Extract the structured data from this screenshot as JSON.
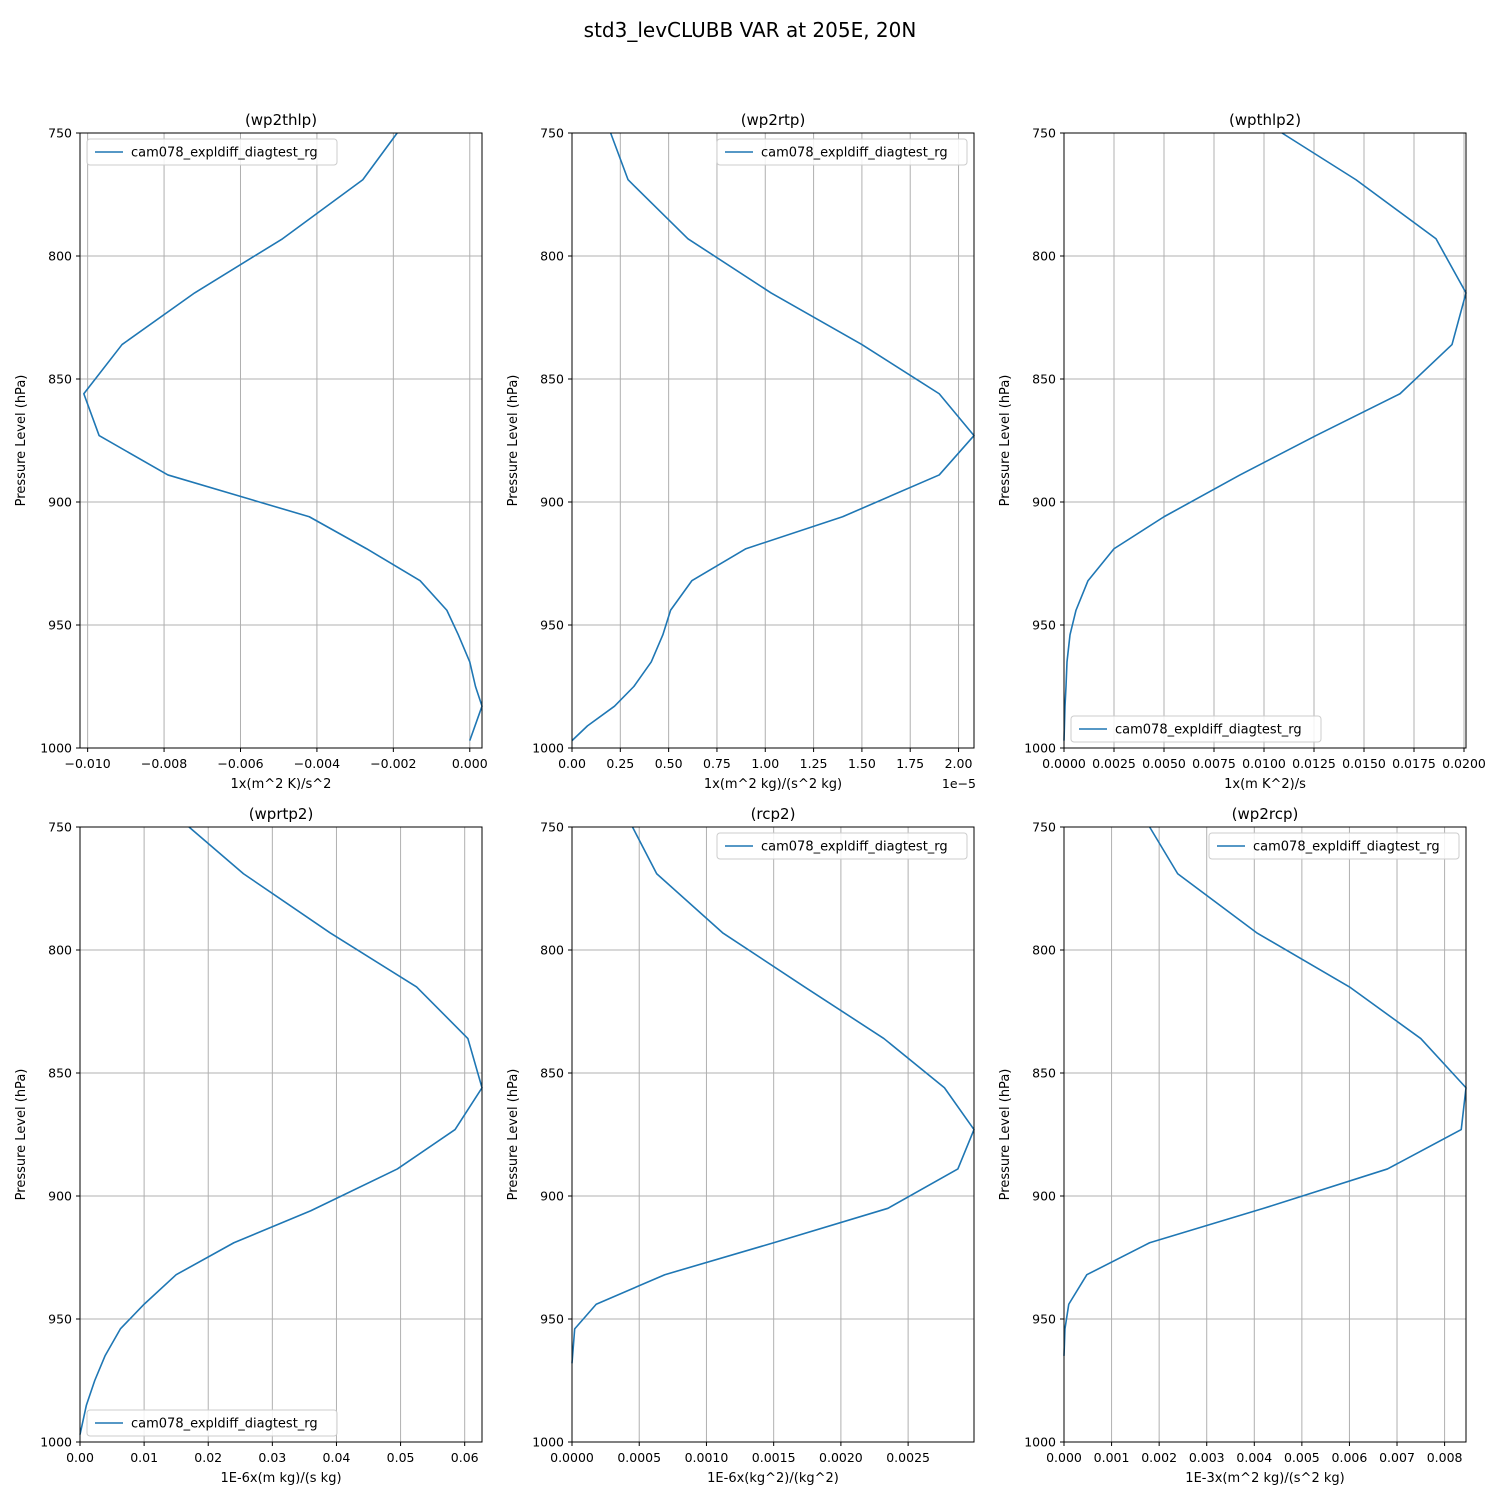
{
  "figure": {
    "title": "std3_levCLUBB VAR at 205E, 20N"
  },
  "style": {
    "line_color": "#1f77b4",
    "grid_color": "#b0b0b0",
    "legend_border": "#cccccc"
  },
  "chart_data": [
    {
      "type": "line",
      "title": "(wp2thlp)",
      "xlabel": "1x(m^2 K)/s^2",
      "ylabel": "Pressure Level (hPa)",
      "xlim": [
        -0.0102,
        0.00032
      ],
      "ylim": [
        1000,
        750
      ],
      "x_scale_note": "",
      "xticks": [
        -0.01,
        -0.008,
        -0.006,
        -0.004,
        -0.002,
        0.0
      ],
      "xtick_labels": [
        "−0.010",
        "−0.008",
        "−0.006",
        "−0.004",
        "−0.002",
        "0.000"
      ],
      "yticks": [
        750,
        800,
        850,
        900,
        950,
        1000
      ],
      "ytick_labels": [
        "750",
        "800",
        "850",
        "900",
        "950",
        "1000"
      ],
      "legend_loc": "upper-left",
      "grid": true,
      "series": [
        {
          "name": "cam078_expldiff_diagtest_rg",
          "x": [
            -0.0019,
            -0.0028,
            -0.0049,
            -0.0072,
            -0.0091,
            -0.0101,
            -0.0097,
            -0.0079,
            -0.0042,
            -0.0027,
            -0.0013,
            -0.0006,
            -0.0003,
            0.0,
            0.00015,
            0.00032,
            0.0
          ],
          "y": [
            750,
            769,
            793,
            815,
            836,
            856,
            873,
            889,
            906,
            919,
            932,
            944,
            954,
            965,
            975,
            983,
            997
          ]
        }
      ]
    },
    {
      "type": "line",
      "title": "(wp2rtp)",
      "xlabel": "1x(m^2 kg)/(s^2 kg)",
      "ylabel": "Pressure Level (hPa)",
      "xlim": [
        0,
        2.08
      ],
      "ylim": [
        1000,
        750
      ],
      "x_scale_note": "1e−5",
      "xticks": [
        0,
        0.25,
        0.5,
        0.75,
        1.0,
        1.25,
        1.5,
        1.75,
        2.0
      ],
      "xtick_labels": [
        "0.00",
        "0.25",
        "0.50",
        "0.75",
        "1.00",
        "1.25",
        "1.50",
        "1.75",
        "2.00"
      ],
      "yticks": [
        750,
        800,
        850,
        900,
        950,
        1000
      ],
      "ytick_labels": [
        "750",
        "800",
        "850",
        "900",
        "950",
        "1000"
      ],
      "legend_loc": "upper-right",
      "grid": true,
      "series": [
        {
          "name": "cam078_expldiff_diagtest_rg",
          "x": [
            0.2,
            0.29,
            0.6,
            1.03,
            1.5,
            1.9,
            2.08,
            1.9,
            1.4,
            0.9,
            0.62,
            0.51,
            0.47,
            0.41,
            0.32,
            0.22,
            0.08,
            0.0
          ],
          "y": [
            750,
            769,
            793,
            815,
            836,
            856,
            873,
            889,
            906,
            919,
            932,
            944,
            954,
            965,
            975,
            983,
            991,
            997
          ]
        }
      ]
    },
    {
      "type": "line",
      "title": "(wpthlp2)",
      "xlabel": "1x(m K^2)/s",
      "ylabel": "Pressure Level (hPa)",
      "xlim": [
        0,
        0.0201
      ],
      "ylim": [
        1000,
        750
      ],
      "x_scale_note": "",
      "xticks": [
        0,
        0.0025,
        0.005,
        0.0075,
        0.01,
        0.0125,
        0.015,
        0.0175,
        0.02
      ],
      "xtick_labels": [
        "0.0000",
        "0.0025",
        "0.0050",
        "0.0075",
        "0.0100",
        "0.0125",
        "0.0150",
        "0.0175",
        "0.0200"
      ],
      "yticks": [
        750,
        800,
        850,
        900,
        950,
        1000
      ],
      "ytick_labels": [
        "750",
        "800",
        "850",
        "900",
        "950",
        "1000"
      ],
      "legend_loc": "lower-left",
      "grid": true,
      "series": [
        {
          "name": "cam078_expldiff_diagtest_rg",
          "x": [
            0.0109,
            0.0146,
            0.0186,
            0.0201,
            0.0194,
            0.0168,
            0.0126,
            0.0088,
            0.005,
            0.0025,
            0.0012,
            0.0006,
            0.0003,
            0.00015,
            0.0001,
            5e-05,
            0.0
          ],
          "y": [
            750,
            769,
            793,
            815,
            836,
            856,
            873,
            889,
            906,
            919,
            932,
            944,
            954,
            965,
            975,
            983,
            997
          ]
        }
      ]
    },
    {
      "type": "line",
      "title": "(wprtp2)",
      "xlabel": "1E-6x(m kg)/(s kg)",
      "ylabel": "Pressure Level (hPa)",
      "xlim": [
        0,
        0.0627
      ],
      "ylim": [
        1000,
        750
      ],
      "x_scale_note": "",
      "xticks": [
        0,
        0.01,
        0.02,
        0.03,
        0.04,
        0.05,
        0.06
      ],
      "xtick_labels": [
        "0.00",
        "0.01",
        "0.02",
        "0.03",
        "0.04",
        "0.05",
        "0.06"
      ],
      "yticks": [
        750,
        800,
        850,
        900,
        950,
        1000
      ],
      "ytick_labels": [
        "750",
        "800",
        "850",
        "900",
        "950",
        "1000"
      ],
      "legend_loc": "lower-left",
      "grid": true,
      "series": [
        {
          "name": "cam078_expldiff_diagtest_rg",
          "x": [
            0.017,
            0.0255,
            0.039,
            0.0525,
            0.0605,
            0.0627,
            0.0585,
            0.0495,
            0.036,
            0.024,
            0.015,
            0.01,
            0.0063,
            0.0039,
            0.0023,
            0.001,
            0.0
          ],
          "y": [
            750,
            769,
            793,
            815,
            836,
            856,
            873,
            889,
            906,
            919,
            932,
            944,
            954,
            965,
            975,
            985,
            997
          ]
        }
      ]
    },
    {
      "type": "line",
      "title": "(rcp2)",
      "xlabel": "1E-6x(kg^2)/(kg^2)",
      "ylabel": "Pressure Level (hPa)",
      "xlim": [
        0,
        0.00299
      ],
      "ylim": [
        1000,
        750
      ],
      "x_scale_note": "",
      "xticks": [
        0,
        0.0005,
        0.001,
        0.0015,
        0.002,
        0.0025
      ],
      "xtick_labels": [
        "0.0000",
        "0.0005",
        "0.0010",
        "0.0015",
        "0.0020",
        "0.0025"
      ],
      "yticks": [
        750,
        800,
        850,
        900,
        950,
        1000
      ],
      "ytick_labels": [
        "750",
        "800",
        "850",
        "900",
        "950",
        "1000"
      ],
      "legend_loc": "upper-right",
      "grid": true,
      "series": [
        {
          "name": "cam078_expldiff_diagtest_rg",
          "x": [
            0.00045,
            0.00063,
            0.00112,
            0.00173,
            0.00232,
            0.00277,
            0.00299,
            0.00287,
            0.00235,
            0.0015,
            0.00069,
            0.00018,
            2e-05,
            0.0
          ],
          "y": [
            750,
            769,
            793,
            815,
            836,
            856,
            873,
            889,
            905,
            919,
            932,
            944,
            954,
            968
          ]
        }
      ]
    },
    {
      "type": "line",
      "title": "(wp2rcp)",
      "xlabel": "1E-3x(m^2 kg)/(s^2 kg)",
      "ylabel": "Pressure Level (hPa)",
      "xlim": [
        0,
        0.00845
      ],
      "ylim": [
        1000,
        750
      ],
      "x_scale_note": "",
      "xticks": [
        0,
        0.001,
        0.002,
        0.003,
        0.004,
        0.005,
        0.006,
        0.007,
        0.008
      ],
      "xtick_labels": [
        "0.000",
        "0.001",
        "0.002",
        "0.003",
        "0.004",
        "0.005",
        "0.006",
        "0.007",
        "0.008"
      ],
      "yticks": [
        750,
        800,
        850,
        900,
        950,
        1000
      ],
      "ytick_labels": [
        "750",
        "800",
        "850",
        "900",
        "950",
        "1000"
      ],
      "legend_loc": "upper-right",
      "grid": true,
      "series": [
        {
          "name": "cam078_expldiff_diagtest_rg",
          "x": [
            0.0018,
            0.00239,
            0.00405,
            0.006,
            0.0075,
            0.00845,
            0.00835,
            0.0068,
            0.0042,
            0.0018,
            0.00048,
            0.0001,
            2e-05,
            0.0
          ],
          "y": [
            750,
            769,
            793,
            815,
            836,
            856,
            873,
            889,
            905,
            919,
            932,
            944,
            954,
            965
          ]
        }
      ]
    }
  ]
}
